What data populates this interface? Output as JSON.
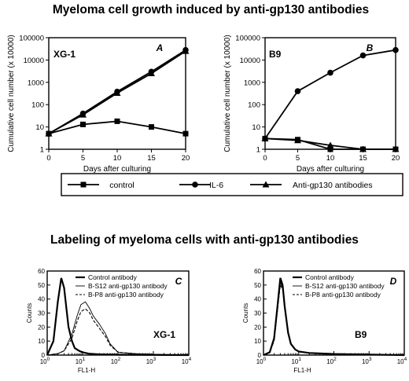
{
  "top": {
    "title": "Myeloma cell growth induced by anti-gp130 antibodies"
  },
  "bottom": {
    "title": "Labeling of myeloma cells with anti-gp130 antibodies"
  },
  "legend": {
    "items": [
      {
        "label": "control",
        "marker": "square"
      },
      {
        "label": "IL-6",
        "marker": "circle"
      },
      {
        "label": "Anti-gp130 antibodies",
        "marker": "triangle"
      }
    ]
  },
  "chart_data": [
    {
      "type": "line",
      "panel": "A",
      "cell_line": "XG-1",
      "xlabel": "Days after culturing",
      "ylabel": "Cumulative cell number (x 10000)",
      "yscale": "log",
      "xlim": [
        0,
        20
      ],
      "ylim": [
        1,
        100000
      ],
      "x_ticks": [
        0,
        5,
        10,
        15,
        20
      ],
      "y_ticks": [
        1,
        10,
        100,
        1000,
        10000,
        100000
      ],
      "x": [
        0,
        5,
        10,
        15,
        20
      ],
      "series": [
        {
          "name": "control",
          "marker": "square",
          "values": [
            5,
            13,
            18,
            10,
            5
          ]
        },
        {
          "name": "IL-6",
          "marker": "circle",
          "values": [
            5,
            40,
            380,
            3000,
            28000
          ]
        },
        {
          "name": "Anti-gp130 antibodies",
          "marker": "triangle",
          "values": [
            5,
            35,
            330,
            2500,
            25000
          ]
        }
      ]
    },
    {
      "type": "line",
      "panel": "B",
      "cell_line": "B9",
      "xlabel": "Days after culturing",
      "ylabel": "Cumulative cell number (x 10000)",
      "yscale": "log",
      "xlim": [
        0,
        20
      ],
      "ylim": [
        1,
        100000
      ],
      "x_ticks": [
        0,
        5,
        10,
        15,
        20
      ],
      "y_ticks": [
        1,
        10,
        100,
        1000,
        10000,
        100000
      ],
      "x": [
        0,
        5,
        10,
        15,
        20
      ],
      "series": [
        {
          "name": "control",
          "marker": "square",
          "values": [
            3,
            2.7,
            1,
            1,
            1
          ]
        },
        {
          "name": "IL-6",
          "marker": "circle",
          "values": [
            3,
            400,
            2700,
            16000,
            28000
          ]
        },
        {
          "name": "Anti-gp130 antibodies",
          "marker": "triangle",
          "values": [
            3,
            2.5,
            1.5,
            1,
            1
          ]
        }
      ]
    },
    {
      "type": "area",
      "panel": "C",
      "cell_line": "XG-1",
      "xlabel": "FL1-H",
      "ylabel": "Counts",
      "xscale": "log",
      "xlim": [
        1,
        10000
      ],
      "ylim": [
        0,
        60
      ],
      "x_tick_labels": [
        "10",
        "10",
        "10",
        "10",
        "10"
      ],
      "x_tick_exponents": [
        "0",
        "1",
        "2",
        "3",
        "4"
      ],
      "y_ticks": [
        0,
        10,
        20,
        30,
        40,
        50,
        60
      ],
      "legend": [
        "Control antibody",
        "B-S12 anti-gp130 antibody",
        "B-P8 anti-gp130 antibody"
      ],
      "series": [
        {
          "name": "Control antibody",
          "style": "thick",
          "x": [
            1,
            1.5,
            2,
            2.5,
            3,
            3.5,
            4,
            5,
            6,
            8,
            10,
            15,
            30,
            100,
            10000
          ],
          "values": [
            0,
            10,
            38,
            55,
            48,
            33,
            20,
            10,
            5,
            3,
            2,
            1,
            0.5,
            0.3,
            0
          ]
        },
        {
          "name": "B-S12 anti-gp130 antibody",
          "style": "thin",
          "x": [
            1,
            2,
            3,
            5,
            7,
            9,
            12,
            16,
            20,
            30,
            45,
            60,
            100,
            300,
            1000,
            10000
          ],
          "values": [
            0,
            1,
            3,
            15,
            28,
            36,
            38,
            33,
            28,
            22,
            15,
            8,
            2,
            1,
            0.5,
            0
          ]
        },
        {
          "name": "B-P8 anti-gp130 antibody",
          "style": "dashed",
          "x": [
            1,
            2,
            3,
            5,
            7,
            9,
            12,
            16,
            20,
            30,
            45,
            60,
            100,
            300,
            1000,
            10000
          ],
          "values": [
            0,
            1,
            3,
            12,
            24,
            31,
            33,
            30,
            25,
            19,
            13,
            7,
            2,
            1,
            0.5,
            0
          ]
        }
      ]
    },
    {
      "type": "area",
      "panel": "D",
      "cell_line": "B9",
      "xlabel": "FL1-H",
      "ylabel": "Counts",
      "xscale": "log",
      "xlim": [
        1,
        10000
      ],
      "ylim": [
        0,
        60
      ],
      "x_tick_labels": [
        "10",
        "10",
        "10",
        "10",
        "10"
      ],
      "x_tick_exponents": [
        "0",
        "1",
        "2",
        "3",
        "4"
      ],
      "y_ticks": [
        0,
        10,
        20,
        30,
        40,
        50,
        60
      ],
      "legend": [
        "Control antibody",
        "B-S12 anti-gp130 antibody",
        "B-P8 anti-gp130 antibody"
      ],
      "series": [
        {
          "name": "Control antibody",
          "style": "thick",
          "x": [
            1,
            1.5,
            2,
            2.5,
            3,
            3.5,
            4,
            5,
            6,
            8,
            10,
            20,
            100,
            1000,
            10000
          ],
          "values": [
            0,
            2,
            12,
            35,
            55,
            50,
            35,
            16,
            8,
            4,
            2.5,
            1.5,
            0.8,
            0.4,
            0
          ]
        },
        {
          "name": "B-S12 anti-gp130 antibody",
          "style": "thin",
          "x": [
            1,
            1.5,
            2,
            2.5,
            3,
            3.5,
            4,
            5,
            6,
            8,
            10,
            20,
            100,
            1000,
            10000
          ],
          "values": [
            0,
            2,
            11,
            33,
            52,
            48,
            34,
            15,
            8,
            4,
            2.5,
            1.5,
            0.8,
            0.4,
            0
          ]
        },
        {
          "name": "B-P8 anti-gp130 antibody",
          "style": "dashed",
          "x": [
            1,
            1.5,
            2,
            2.5,
            3,
            3.5,
            4,
            5,
            6,
            8,
            10,
            20,
            100,
            1000,
            10000
          ],
          "values": [
            0,
            2,
            10,
            32,
            50,
            47,
            33,
            15,
            8,
            4,
            2.5,
            1.5,
            0.8,
            0.4,
            0
          ]
        }
      ]
    }
  ]
}
